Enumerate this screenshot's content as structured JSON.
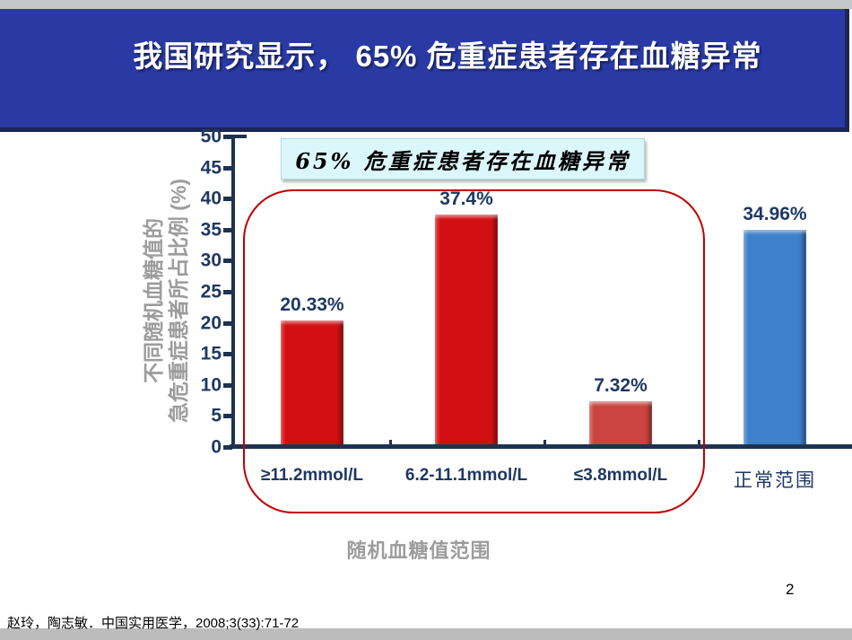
{
  "slide": {
    "page_number": "2",
    "footer_citation": "赵玲，陶志敏．中国实用医学，2008;3(33):71-72"
  },
  "header": {
    "title": "我国研究显示， 65% 危重症患者存在血糖异常",
    "background_color": "#2a3aa4",
    "text_color": "#ffffff"
  },
  "chart_data": {
    "type": "bar",
    "callout_title": "65% 危重症患者存在血糖异常",
    "y_axis_title_line1": "不同随机血糖值的",
    "y_axis_title_line2": "急危重症患者所占比例 (%)",
    "x_axis_title": "随机血糖值范围",
    "categories": [
      "≥11.2mmol/L",
      "6.2-11.1mmol/L",
      "≤3.8mmol/L",
      "正常范围"
    ],
    "values": [
      20.33,
      37.4,
      7.32,
      34.96
    ],
    "data_labels": [
      "20.33%",
      "37.4%",
      "7.32%",
      "34.96%"
    ],
    "bar_colors": [
      "#d21014",
      "#d21014",
      "#cb4440",
      "#3f80cc"
    ],
    "ylim": [
      0,
      50
    ],
    "yticks": [
      0,
      5,
      10,
      15,
      20,
      25,
      30,
      35,
      40,
      45,
      50
    ],
    "grid": false,
    "legend_position": "none",
    "highlight_frame_color": "#c00000",
    "axis_color": "#1e3250",
    "label_color": "#1f3864"
  }
}
